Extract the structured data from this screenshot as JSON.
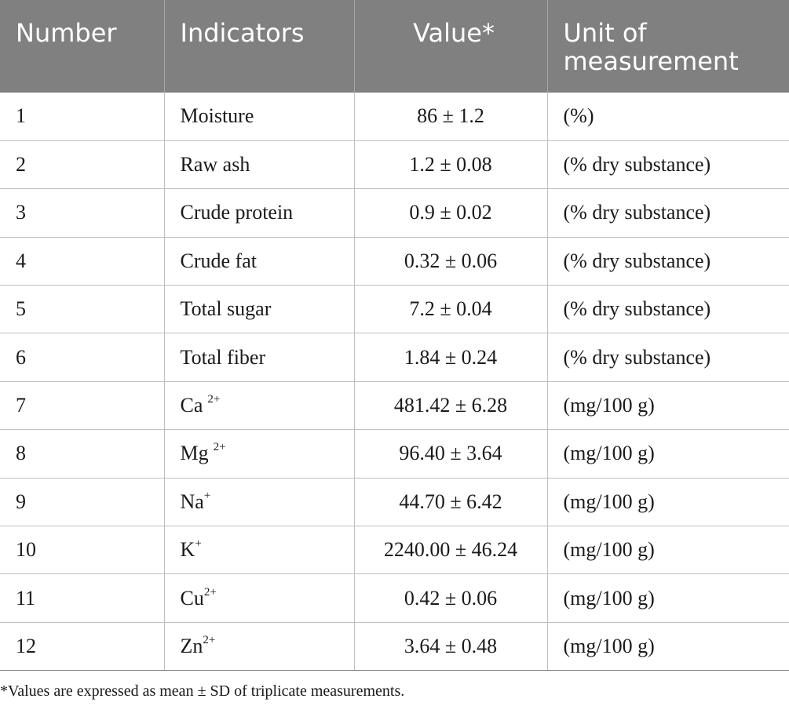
{
  "table": {
    "headers": {
      "number": "Number",
      "indicators": "Indicators",
      "value": "Value*",
      "unit_line1": "Unit of",
      "unit_line2": "measurement"
    },
    "rows": [
      {
        "number": "1",
        "indicator": "Moisture",
        "value": "86 ± 1.2",
        "unit": "(%)"
      },
      {
        "number": "2",
        "indicator": "Raw ash",
        "value": "1.2 ± 0.08",
        "unit": "(% dry substance)"
      },
      {
        "number": "3",
        "indicator": "Crude protein",
        "value": "0.9 ± 0.02",
        "unit": "(% dry substance)"
      },
      {
        "number": "4",
        "indicator": "Crude fat",
        "value": "0.32 ± 0.06",
        "unit": "(% dry substance)"
      },
      {
        "number": "5",
        "indicator": "Total sugar",
        "value": "7.2 ± 0.04",
        "unit": "(% dry substance)"
      },
      {
        "number": "6",
        "indicator": "Total fiber",
        "value": "1.84 ± 0.24",
        "unit": "(% dry substance)"
      },
      {
        "number": "7",
        "indicator": "Ca",
        "indicator_sup": "2+",
        "value": "481.42 ± 6.28",
        "unit": "(mg/100 g)"
      },
      {
        "number": "8",
        "indicator": "Mg",
        "indicator_sup": "2+",
        "value": "96.40 ± 3.64",
        "unit": "(mg/100 g)"
      },
      {
        "number": "9",
        "indicator": "Na",
        "indicator_sup": "+",
        "value": "44.70 ± 6.42",
        "unit": "(mg/100 g)"
      },
      {
        "number": "10",
        "indicator": "K",
        "indicator_sup": "+",
        "value": "2240.00 ± 46.24",
        "unit": "(mg/100 g)"
      },
      {
        "number": "11",
        "indicator": "Cu",
        "indicator_sup": "2+",
        "value": "0.42 ± 0.06",
        "unit": "(mg/100 g)"
      },
      {
        "number": "12",
        "indicator": "Zn",
        "indicator_sup": "2+",
        "value": "3.64 ± 0.48",
        "unit": "(mg/100 g)"
      }
    ]
  },
  "footnote": "*Values are expressed as mean ± SD of triplicate measurements.",
  "colors": {
    "header_bg": "#808080",
    "header_text": "#ffffff",
    "grid": "#bfbfbf"
  }
}
